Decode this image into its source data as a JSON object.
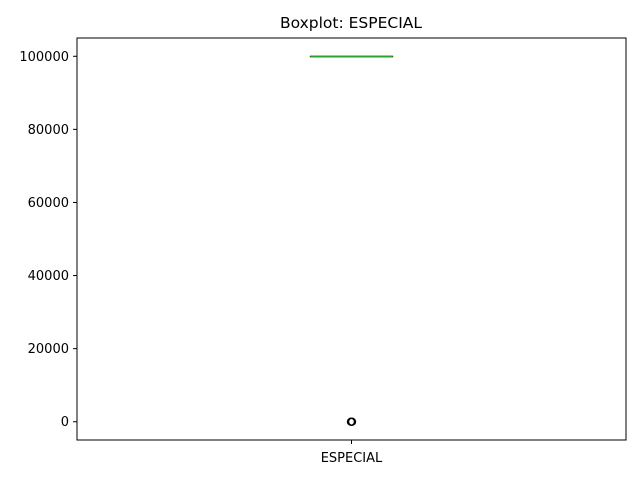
{
  "chart_data": {
    "type": "boxplot",
    "title": "Boxplot: ESPECIAL",
    "xlabel": "",
    "ylabel": "",
    "categories": [
      "ESPECIAL"
    ],
    "y_ticks": [
      0,
      20000,
      40000,
      60000,
      80000,
      100000
    ],
    "ylim": [
      -5000,
      105000
    ],
    "grid": false,
    "boxes": [
      {
        "category": "ESPECIAL",
        "whisker_low": 100000,
        "q1": 100000,
        "median": 100000,
        "q3": 100000,
        "whisker_high": 100000,
        "outliers": [
          0,
          0,
          0
        ]
      }
    ],
    "colors": {
      "box": "#000000",
      "median": "#2ca02c",
      "outlier_edge": "#000000"
    }
  }
}
